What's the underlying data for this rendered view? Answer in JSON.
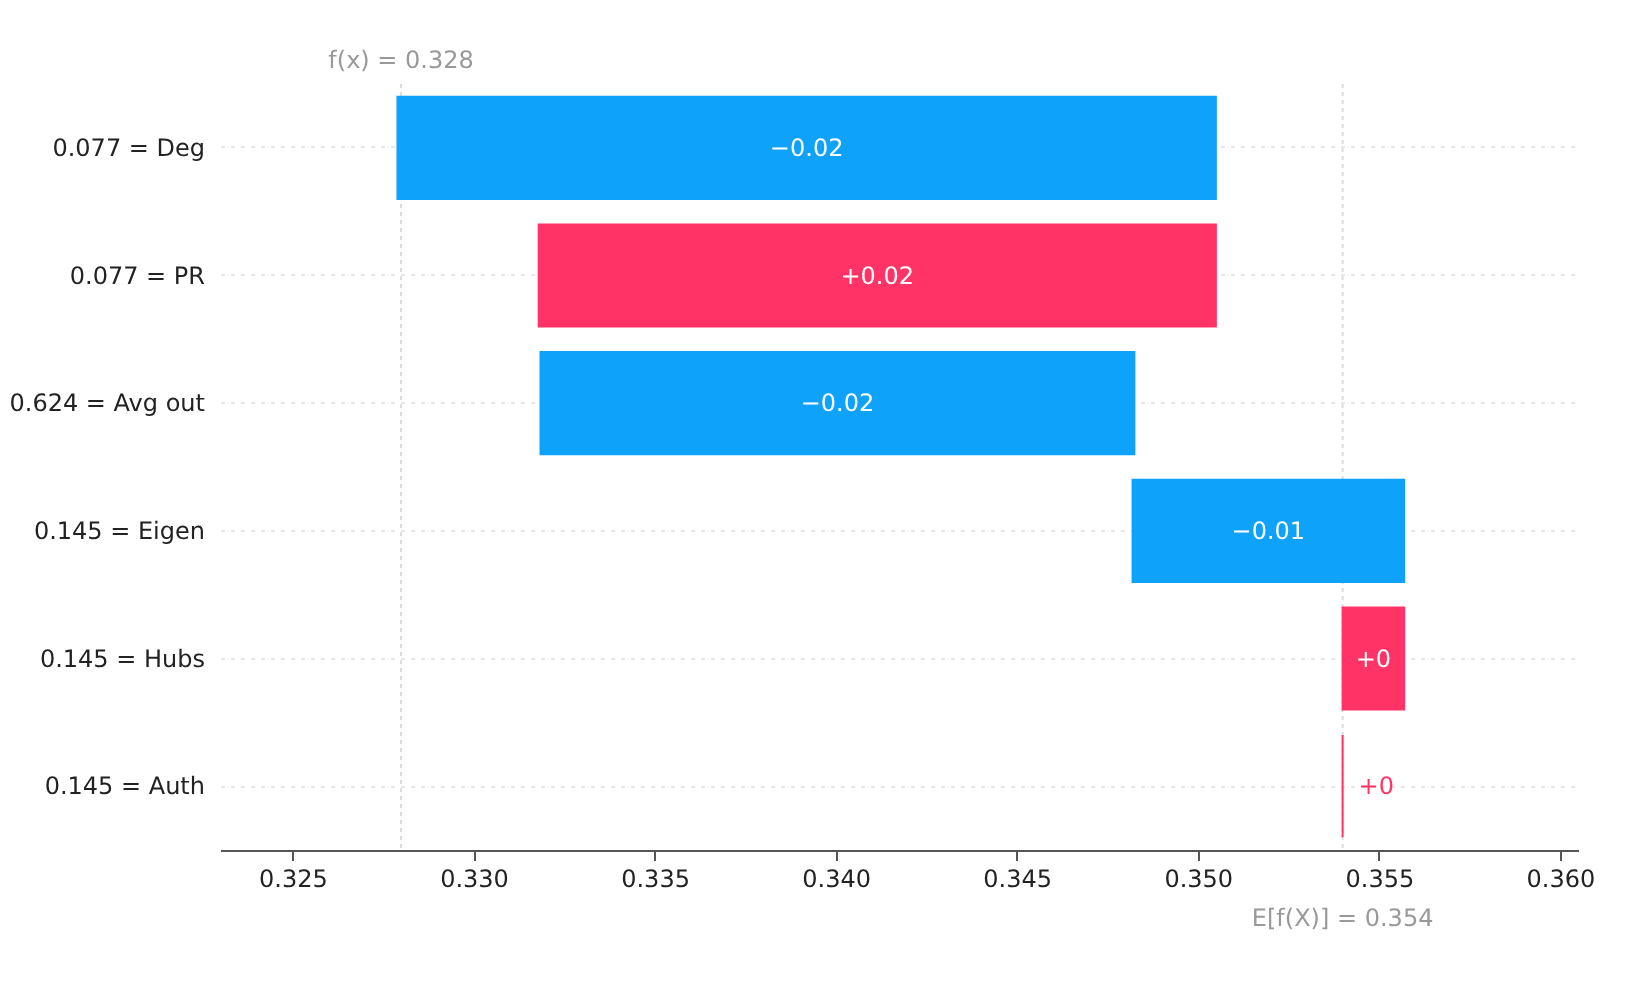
{
  "chart_data": {
    "type": "bar",
    "orientation": "horizontal",
    "categories": [
      "0.077 = Deg",
      "0.077 = PR",
      "0.624 = Avg out",
      "0.145 = Eigen",
      "0.145 = Hubs",
      "0.145 = Auth"
    ],
    "base": [
      0.3505,
      0.3318,
      0.34825,
      0.3557,
      0.354,
      0.354
    ],
    "values": [
      -0.0226,
      0.0187,
      -0.0164,
      -0.0075,
      0.0017,
      0
    ],
    "colors": [
      "#0ea2fb",
      "#ff3366",
      "#0ea2fb",
      "#0ea2fb",
      "#ff3366",
      "#ff3366"
    ],
    "value_labels": [
      "−0.02",
      "+0.02",
      "−0.02",
      "−0.01",
      "+0",
      "+0"
    ],
    "xlim": [
      0.323,
      0.3605
    ],
    "xticks": [
      0.325,
      {
        "value": 0.33,
        "label": "0.330"
      },
      0.335,
      {
        "value": 0.34,
        "label": "0.340"
      },
      0.345,
      {
        "value": 0.35,
        "label": "0.350"
      },
      0.355,
      {
        "value": 0.36,
        "label": "0.360"
      }
    ],
    "grid": "y",
    "ref_lines": [
      {
        "axis": "x",
        "value": 0.328,
        "label": "f(x) = 0.328"
      },
      {
        "axis": "x",
        "value": 0.354,
        "label": "E[f(X)] = 0.354"
      }
    ]
  }
}
